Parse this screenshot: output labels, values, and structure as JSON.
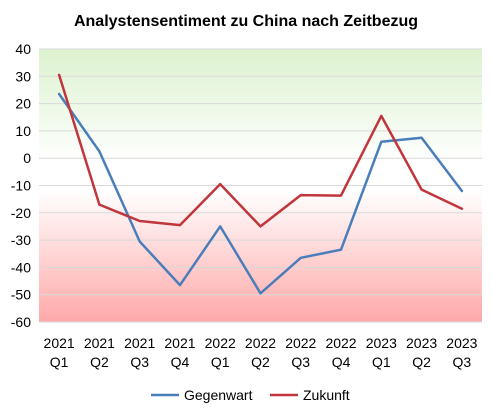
{
  "chart_data": {
    "type": "line",
    "title": "Analystensentiment zu China nach Zeitbezug",
    "xlabel": "",
    "ylabel": "",
    "ylim": [
      -60,
      40
    ],
    "yticks": [
      40,
      30,
      20,
      10,
      0,
      -10,
      -20,
      -30,
      -40,
      -50,
      -60
    ],
    "grid": true,
    "legend": "bottom",
    "background": "gradient green (top) to white to red (bottom)",
    "categories": [
      {
        "year": "2021",
        "quarter": "Q1"
      },
      {
        "year": "2021",
        "quarter": "Q2"
      },
      {
        "year": "2021",
        "quarter": "Q3"
      },
      {
        "year": "2021",
        "quarter": "Q4"
      },
      {
        "year": "2022",
        "quarter": "Q1"
      },
      {
        "year": "2022",
        "quarter": "Q2"
      },
      {
        "year": "2022",
        "quarter": "Q3"
      },
      {
        "year": "2022",
        "quarter": "Q4"
      },
      {
        "year": "2023",
        "quarter": "Q1"
      },
      {
        "year": "2023",
        "quarter": "Q2"
      },
      {
        "year": "2023",
        "quarter": "Q3"
      }
    ],
    "series": [
      {
        "name": "Gegenwart",
        "color": "#4a7ebb",
        "values": [
          23.5,
          2.5,
          -30.5,
          -46.5,
          -25,
          -49.5,
          -36.5,
          -33.5,
          6,
          7.5,
          -12
        ]
      },
      {
        "name": "Zukunft",
        "color": "#c0363c",
        "values": [
          30.5,
          -17,
          -23,
          -24.5,
          -9.5,
          -25,
          -13.5,
          -13.7,
          15.5,
          -11.5,
          -18.5
        ]
      }
    ]
  }
}
